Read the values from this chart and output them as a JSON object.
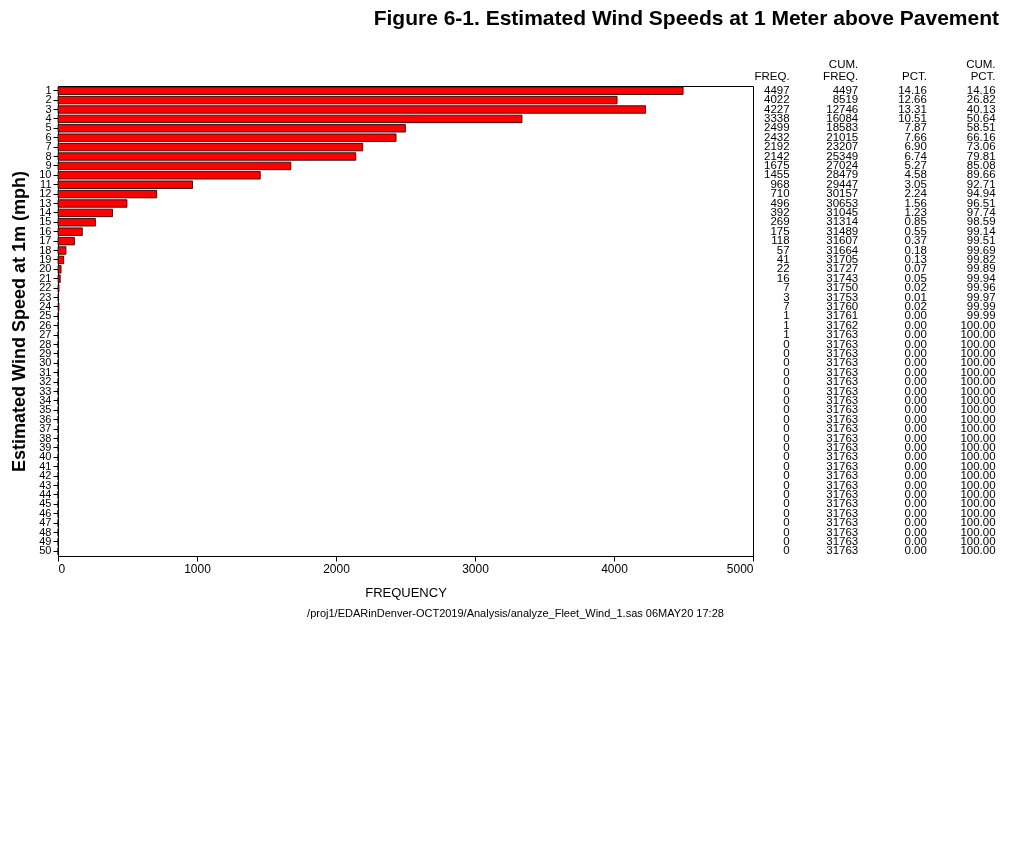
{
  "chart_data": {
    "type": "bar",
    "orientation": "horizontal",
    "title": "Figure 6-1.  Estimated Wind Speeds at 1 Meter above Pavement",
    "xlabel": "FREQUENCY",
    "ylabel": "Estimated Wind Speed at 1m (mph)",
    "categories": [
      "1",
      "2",
      "3",
      "4",
      "5",
      "6",
      "7",
      "8",
      "9",
      "10",
      "11",
      "12",
      "13",
      "14",
      "15",
      "16",
      "17",
      "18",
      "19",
      "20",
      "21",
      "22",
      "23",
      "24",
      "25",
      "26",
      "27",
      "28",
      "29",
      "30",
      "31",
      "32",
      "33",
      "34",
      "35",
      "36",
      "37",
      "38",
      "39",
      "40",
      "41",
      "42",
      "43",
      "44",
      "45",
      "46",
      "47",
      "48",
      "49",
      "50"
    ],
    "values": [
      4497,
      4022,
      4227,
      3338,
      2499,
      2432,
      2192,
      2142,
      1675,
      1455,
      968,
      710,
      496,
      392,
      269,
      175,
      118,
      57,
      41,
      22,
      16,
      7,
      3,
      7,
      1,
      1,
      1,
      0,
      0,
      0,
      0,
      0,
      0,
      0,
      0,
      0,
      0,
      0,
      0,
      0,
      0,
      0,
      0,
      0,
      0,
      0,
      0,
      0,
      0,
      0
    ],
    "color": "#ff0000",
    "xlim": [
      0,
      5000
    ],
    "xticks": [
      0,
      1000,
      2000,
      3000,
      4000,
      5000
    ],
    "grid": false,
    "data_labels": true,
    "annotations": [
      "/proj1/EDARinDenver-OCT2019/Analysis/analyze_Fleet_Wind_1.sas  06MAY20 17:28",
      "FREQ.",
      "CUM.\nFREQ.",
      "PCT.",
      "CUM.\nPCT.",
      "4497",
      "14.16",
      "14.16",
      "8519",
      "12.66",
      "26.82",
      "12746",
      "13.31",
      "40.13",
      "16084",
      "10.51",
      "50.64",
      "18583",
      "7.87",
      "58.51",
      "21015",
      "7.66",
      "66.16",
      "23207",
      "6.90",
      "73.06",
      "25349",
      "6.74",
      "79.81",
      "27024",
      "5.27",
      "85.08",
      "28479",
      "4.58",
      "89.66",
      "29447",
      "3.05",
      "92.71",
      "30157",
      "2.24",
      "94.94",
      "30653",
      "1.56",
      "96.51",
      "31045",
      "1.23",
      "97.74",
      "31314",
      "0.85",
      "98.59",
      "31489",
      "0.55",
      "99.14",
      "31607",
      "0.37",
      "99.51",
      "31664",
      "0.18",
      "99.69",
      "31705",
      "0.13",
      "99.82",
      "31727",
      "0.07",
      "99.89",
      "31743",
      "0.05",
      "99.94",
      "31750",
      "0.02",
      "99.96",
      "31753",
      "0.01",
      "99.97",
      "31760",
      "0.02",
      "99.99",
      "31761",
      "0.00",
      "99.99",
      "31762",
      "0.00",
      "100.00",
      "31763",
      "0.00",
      "100.00",
      "31763",
      "0.00",
      "100.00",
      "31763",
      "0.00",
      "100.00",
      "31763",
      "0.00",
      "100.00",
      "31763",
      "0.00",
      "100.00",
      "31763",
      "0.00",
      "100.00",
      "31763",
      "0.00",
      "100.00",
      "31763",
      "0.00",
      "100.00",
      "31763",
      "0.00",
      "100.00",
      "31763",
      "0.00",
      "100.00",
      "31763",
      "0.00",
      "100.00",
      "31763",
      "0.00",
      "100.00",
      "31763",
      "0.00",
      "100.00",
      "31763",
      "0.00",
      "100.00",
      "31763",
      "0.00",
      "100.00",
      "31763",
      "0.00",
      "100.00",
      "31763",
      "0.00",
      "100.00",
      "31763",
      "0.00",
      "100.00",
      "31763",
      "0.00",
      "100.00",
      "31763",
      "0.00",
      "100.00",
      "31763",
      "0.00",
      "100.00",
      "31763",
      "0.00",
      "100.00",
      "31763",
      "0.00",
      "100.00",
      "31763",
      "0.00",
      "100.00"
    ]
  }
}
